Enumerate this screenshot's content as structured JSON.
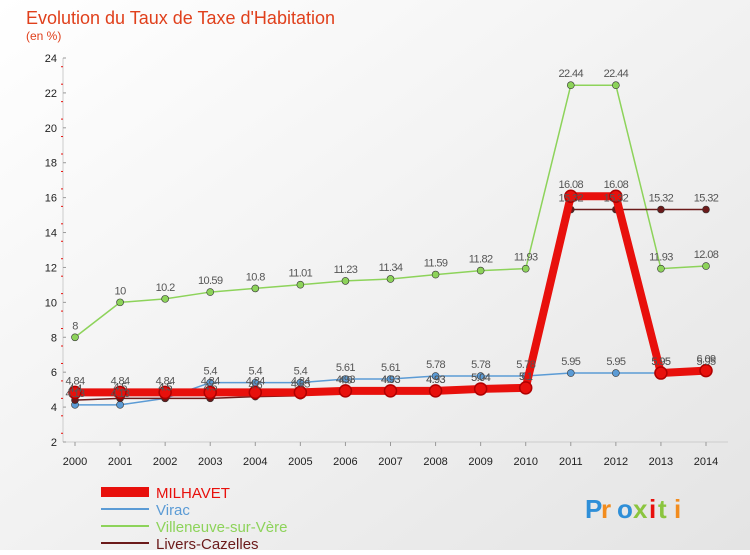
{
  "chart_data": {
    "type": "line",
    "title": "Evolution du Taux de Taxe d'Habitation",
    "subtitle": "(en %)",
    "xlabel": "",
    "ylabel": "",
    "ylim": [
      2,
      24
    ],
    "yticks": [
      2,
      4,
      6,
      8,
      10,
      12,
      14,
      16,
      18,
      20,
      22,
      24
    ],
    "categories": [
      "2000",
      "2001",
      "2002",
      "2003",
      "2004",
      "2005",
      "2006",
      "2007",
      "2008",
      "2009",
      "2010",
      "2011",
      "2012",
      "2013",
      "2014"
    ],
    "series": [
      {
        "name": "Virac",
        "color": "#5b9bd5",
        "values": [
          4.13,
          4.13,
          4.5,
          5.4,
          5.4,
          5.4,
          5.61,
          5.61,
          5.78,
          5.78,
          5.78,
          5.95,
          5.95,
          5.95,
          5.95
        ],
        "labels": [
          "4.13",
          "4.13",
          "4.5",
          "5.4",
          "5.4",
          "5.4",
          "5.61",
          "5.61",
          "5.78",
          "5.78",
          "5.78",
          "5.95",
          "5.95",
          "5.95",
          "5.95"
        ]
      },
      {
        "name": "Villeneuve-sur-Vère",
        "color": "#8dd35a",
        "values": [
          8,
          10,
          10.2,
          10.59,
          10.8,
          11.01,
          11.23,
          11.34,
          11.59,
          11.82,
          11.93,
          22.44,
          22.44,
          11.93,
          12.08
        ],
        "labels": [
          "8",
          "10",
          "10.2",
          "10.59",
          "10.8",
          "11.01",
          "11.23",
          "11.34",
          "11.59",
          "11.82",
          "11.93",
          "22.44",
          "22.44",
          "11.93",
          "12.08"
        ]
      },
      {
        "name": "Livers-Cazelles",
        "color": "#6b1a1a",
        "values": [
          4.4,
          4.5,
          4.5,
          4.5,
          4.6,
          4.65,
          4.9,
          4.93,
          4.93,
          5.04,
          5.1,
          15.32,
          15.32,
          15.32,
          15.32
        ],
        "labels": [
          "4.4",
          "4.5",
          "4.5",
          "4.5",
          "4.6",
          "4.65",
          "4.9",
          "4.93",
          "4.93",
          "5.04",
          "5.1",
          "15.32",
          "15.32",
          "15.32",
          "15.32"
        ]
      },
      {
        "name": "MILHAVET",
        "color": "#e8100c",
        "values": [
          4.84,
          4.84,
          4.84,
          4.84,
          4.84,
          4.84,
          4.93,
          4.93,
          4.93,
          5.04,
          5.1,
          16.08,
          16.08,
          5.95,
          6.09
        ],
        "labels": [
          "4.84",
          "4.84",
          "4.84",
          "4.84",
          "4.84",
          "4.84",
          "4.93",
          "4.93",
          "4.93",
          "5.04",
          "5.1",
          "16.08",
          "16.08",
          "5.95",
          "6.09"
        ]
      }
    ],
    "legend": [
      "MILHAVET",
      "Virac",
      "Villeneuve-sur-Vère",
      "Livers-Cazelles"
    ],
    "legend_position": "bottom-left",
    "grid": false
  },
  "branding": {
    "logo_text": "Proxiti"
  }
}
